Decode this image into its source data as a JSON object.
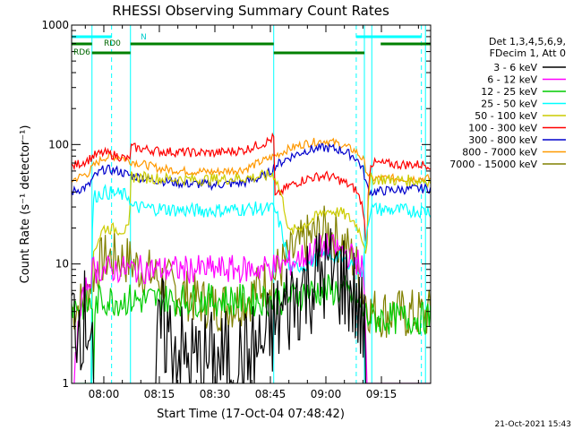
{
  "chart_data": {
    "type": "line",
    "title": "RHESSI Observing Summary Count Rates",
    "xlabel": "Start Time (17-Oct-04 07:48:42)",
    "ylabel": "Count Rate (s⁻¹ detector⁻¹)",
    "yscale": "log",
    "ylim": [
      1,
      1000
    ],
    "xlim_minutes": [
      -8.7,
      88.3
    ],
    "x_ticks": [
      {
        "minute": 0,
        "label": "08:00"
      },
      {
        "minute": 15,
        "label": "08:15"
      },
      {
        "minute": 30,
        "label": "08:30"
      },
      {
        "minute": 45,
        "label": "08:45"
      },
      {
        "minute": 60,
        "label": "09:00"
      },
      {
        "minute": 75,
        "label": "09:15"
      }
    ],
    "y_ticks": [
      {
        "value": 1,
        "label": "1"
      },
      {
        "value": 10,
        "label": "10"
      },
      {
        "value": 100,
        "label": "100"
      },
      {
        "value": 1000,
        "label": "1000"
      }
    ],
    "legend_header": [
      "Det 1,3,4,5,6,9,",
      "FDecim 1, Att 0"
    ],
    "legend_position": "right",
    "footer_date": "21-Oct-2021 15:43",
    "annotations": {
      "N": "N",
      "RD0": "RD0",
      "RD6": "RD6"
    },
    "series": [
      {
        "name": "3 - 6 keV",
        "color": "#000000",
        "x": [
          -8.7,
          -3,
          -2.9,
          14,
          15,
          22,
          30,
          38,
          44,
          46,
          50,
          53,
          56,
          60,
          64,
          66,
          68,
          69,
          70,
          71,
          72,
          88.3
        ],
        "y": [
          3.5,
          3.5,
          0,
          0,
          3,
          1.5,
          1.5,
          1.5,
          2.2,
          3.0,
          4.5,
          6,
          7,
          8.5,
          7.5,
          6.5,
          5,
          3.5,
          3.5,
          0,
          0,
          0
        ]
      },
      {
        "name": "6 - 12 keV",
        "color": "#ff00ff",
        "x": [
          -8.7,
          -3,
          0,
          7,
          14,
          20,
          30,
          40,
          46,
          50,
          55,
          60,
          64,
          68,
          70,
          71,
          88.3
        ],
        "y": [
          0,
          9,
          9,
          9,
          9,
          9,
          9,
          9,
          9.5,
          10,
          12,
          14,
          13,
          11,
          9,
          0,
          0
        ]
      },
      {
        "name": "12 - 25 keV",
        "color": "#00cc00",
        "x": [
          -8.7,
          -3.1,
          -3,
          -2,
          0,
          7,
          14,
          20,
          30,
          40,
          46,
          50,
          55,
          60,
          64,
          66,
          68,
          70,
          72,
          80,
          88.3
        ],
        "y": [
          4.5,
          4.5,
          0,
          5,
          5,
          5,
          5,
          5,
          5,
          5,
          5,
          5.2,
          5.8,
          6,
          6,
          5.5,
          5,
          4,
          3.5,
          3.5,
          3.5
        ]
      },
      {
        "name": "25 - 50 keV",
        "color": "#00ffff",
        "x": [
          -8.7,
          -3.2,
          -3,
          0,
          7,
          7.2,
          15,
          22,
          30,
          40,
          46,
          50,
          55,
          60,
          64,
          68,
          70,
          72,
          80,
          88.3
        ],
        "y": [
          0,
          0,
          36,
          40,
          37,
          30,
          29,
          28,
          28,
          29,
          29,
          9,
          10,
          12,
          11,
          10,
          8,
          29,
          28,
          28
        ]
      },
      {
        "name": "50 - 100 keV",
        "color": "#cccc00",
        "x": [
          -8.7,
          -3.2,
          -3,
          0,
          7,
          7.2,
          15,
          22,
          30,
          40,
          46,
          50,
          55,
          60,
          64,
          68,
          70,
          71,
          72,
          80,
          88.3
        ],
        "y": [
          0,
          0,
          12,
          20,
          19,
          54,
          52,
          51,
          51,
          53,
          56,
          18,
          22,
          28,
          27,
          22,
          16,
          12,
          52,
          50,
          50
        ]
      },
      {
        "name": "100 - 300 keV",
        "color": "#ff0000",
        "x": [
          -8.7,
          -4,
          -3,
          0,
          4,
          7,
          7.2,
          15,
          22,
          30,
          38,
          44,
          46,
          46.2,
          50,
          55,
          60,
          64,
          68,
          70,
          71,
          72,
          80,
          88.3
        ],
        "y": [
          65,
          75,
          80,
          85,
          80,
          74,
          95,
          88,
          86,
          85,
          90,
          105,
          115,
          36,
          45,
          52,
          55,
          50,
          42,
          30,
          10,
          70,
          68,
          68
        ]
      },
      {
        "name": "300 - 800 keV",
        "color": "#0000cc",
        "x": [
          -8.7,
          -4,
          -3,
          0,
          4,
          7,
          15,
          22,
          30,
          38,
          44,
          46,
          50,
          55,
          60,
          64,
          68,
          70,
          71,
          72,
          80,
          88.3
        ],
        "y": [
          40,
          45,
          52,
          62,
          60,
          55,
          50,
          47,
          46,
          48,
          55,
          65,
          78,
          90,
          94,
          90,
          78,
          62,
          45,
          40,
          42,
          43
        ]
      },
      {
        "name": "800 - 7000 keV",
        "color": "#ff9900",
        "x": [
          -8.7,
          -4,
          -3,
          0,
          4,
          7,
          15,
          22,
          30,
          38,
          44,
          46,
          50,
          55,
          60,
          64,
          68,
          70,
          71,
          72,
          80,
          88.3
        ],
        "y": [
          50,
          58,
          65,
          78,
          80,
          73,
          63,
          60,
          59,
          62,
          75,
          80,
          92,
          103,
          108,
          100,
          88,
          75,
          60,
          52,
          52,
          52
        ]
      },
      {
        "name": "7000 - 15000 keV",
        "color": "#808000",
        "x": [
          -8.7,
          -5,
          -3,
          0,
          3,
          7,
          10,
          15,
          20,
          25,
          30,
          35,
          40,
          45,
          50,
          55,
          60,
          63,
          66,
          68,
          70,
          72,
          80,
          88.3
        ],
        "y": [
          4,
          5,
          8,
          11,
          11.5,
          10.5,
          9,
          7.5,
          6,
          5,
          4.4,
          4.6,
          5.5,
          7.5,
          11,
          16,
          19,
          17,
          13,
          10,
          6,
          4,
          3.8,
          3.8
        ]
      }
    ],
    "vlines_solid_minutes": [
      -8.7,
      -3.2,
      7.2,
      45.9,
      70.4,
      72.4,
      86.9
    ],
    "vlines_dashed_minutes": [
      2.1,
      68.2,
      85.8
    ],
    "status_bars": [
      {
        "label": "N",
        "color": "#00ffff",
        "segments": [
          [
            -8.7,
            2.1
          ],
          [
            68.2,
            85.8
          ]
        ]
      },
      {
        "label": "RD0",
        "color": "#008000",
        "segments": [
          [
            -8.7,
            -3.2
          ],
          [
            7.2,
            45.9
          ],
          [
            74.8,
            88.3
          ]
        ]
      },
      {
        "label": "RD6",
        "color": "#008000",
        "segments": [
          [
            -3.2,
            7.2
          ],
          [
            45.9,
            70.4
          ]
        ]
      }
    ]
  }
}
